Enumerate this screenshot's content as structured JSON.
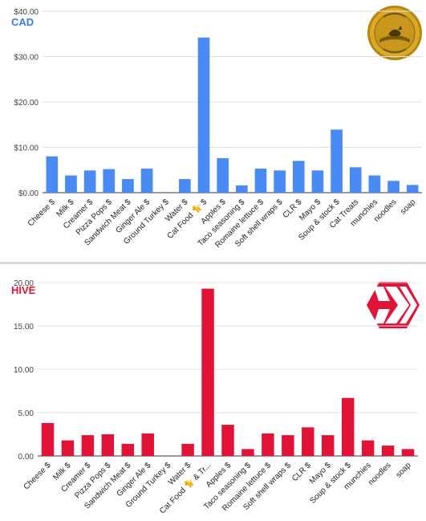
{
  "chart_data": [
    {
      "type": "bar",
      "label": "CAD",
      "currency_symbol": "$",
      "color": "#4a8af4",
      "label_color": "#3b78e7",
      "ylim": [
        0,
        40
      ],
      "yticks": [
        "$0.00",
        "$10.00",
        "$20.00",
        "$30.00",
        "$40.00"
      ],
      "ytick_values": [
        0,
        10,
        20,
        30,
        40
      ],
      "grid": true,
      "categories": [
        "Cheese $",
        "Milk $",
        "Creamer $",
        "Pizza Pops $",
        "Sandwich Meat $",
        "Ginger Ale $",
        "Ground Turkey $",
        "Water $",
        "Cat Food 🐈 $",
        "Apples $",
        "Taco seasoning $",
        "Romaine lettuce $",
        "Soft shell wraps $",
        "CLR $",
        "Mayo $",
        "Soup & stock $",
        "Cat Treats",
        "munchies",
        "noodles",
        "soap"
      ],
      "values": [
        8.0,
        3.8,
        4.9,
        5.2,
        3.0,
        5.3,
        0,
        3.0,
        34.2,
        7.6,
        1.6,
        5.3,
        4.9,
        7.0,
        4.9,
        13.9,
        5.6,
        3.8,
        2.6,
        1.7
      ]
    },
    {
      "type": "bar",
      "label": "HIVE",
      "color": "#e31337",
      "label_color": "#e31337",
      "ylim": [
        0,
        20
      ],
      "yticks": [
        "0.00",
        "5.00",
        "10.00",
        "15.00",
        "20.00"
      ],
      "ytick_values": [
        0,
        5,
        10,
        15,
        20
      ],
      "grid": true,
      "categories": [
        "Cheese $",
        "Milk $",
        "Creamer $",
        "Pizza Pops $",
        "Sandwich Meat $",
        "Ginger Ale $",
        "Ground Turkey $",
        "Water $",
        "Cat Food 🐈 & Tr...",
        "Apples $",
        "Taco seasoning $",
        "Romaine lettuce $",
        "Soft shell wraps $",
        "CLR $",
        "Mayo $",
        "Soup & stock $",
        "munchies",
        "noodles",
        "soap"
      ],
      "values": [
        3.8,
        1.8,
        2.4,
        2.5,
        1.4,
        2.6,
        0,
        1.4,
        19.3,
        3.6,
        0.8,
        2.6,
        2.4,
        3.3,
        2.4,
        6.7,
        1.8,
        1.2,
        0.8
      ]
    }
  ],
  "icons": {
    "coin": "loonie-coin-icon",
    "hive": "hive-logo-icon"
  }
}
